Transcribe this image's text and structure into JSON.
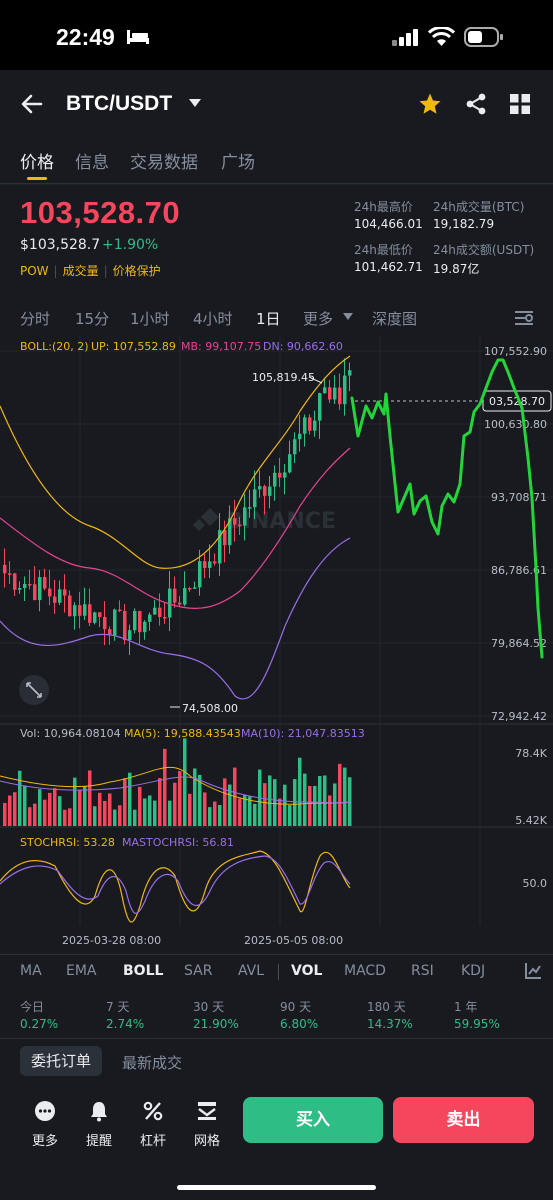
{
  "status_bar": {
    "time": "22:49"
  },
  "header": {
    "pair": "BTC/USDT"
  },
  "tabs": [
    {
      "label": "价格",
      "active": true
    },
    {
      "label": "信息",
      "active": false
    },
    {
      "label": "交易数据",
      "active": false
    },
    {
      "label": "广场",
      "active": false
    }
  ],
  "price": {
    "last": "103,528.70",
    "usd": "$103,528.7",
    "change": "+1.90%",
    "tags": [
      "POW",
      "成交量",
      "价格保护"
    ]
  },
  "stats": {
    "high_label": "24h最高价",
    "high": "104,466.01",
    "vol_btc_label": "24h成交量(BTC)",
    "vol_btc": "19,182.79",
    "low_label": "24h最低价",
    "low": "101,462.71",
    "vol_usdt_label": "24h成交额(USDT)",
    "vol_usdt": "19.87亿"
  },
  "intervals": [
    {
      "label": "分时",
      "active": false
    },
    {
      "label": "15分",
      "active": false
    },
    {
      "label": "1小时",
      "active": false
    },
    {
      "label": "4小时",
      "active": false
    },
    {
      "label": "1日",
      "active": true
    },
    {
      "label": "更多",
      "active": false
    },
    {
      "label": "深度图",
      "active": false
    }
  ],
  "chart": {
    "boll_legend": "BOLL:(20, 2)",
    "up_legend": "UP: 107,552.89",
    "mb_legend": "MB: 99,107.75",
    "dn_legend": "DN: 90,662.60",
    "y_ticks": [
      "107,552.90",
      "100,630.80",
      "93,708.71",
      "86,786.61",
      "79,864.52",
      "72,942.42"
    ],
    "current_price_tag": "03,528.70",
    "high_marker": "105,819.45",
    "low_marker": "74,508.00",
    "watermark": "BINANCE",
    "vol_legend": "Vol: 10,964.08104",
    "ma5_legend": "MA(5): 19,588.43543",
    "ma10_legend": "MA(10): 21,047.83513",
    "vol_ticks": [
      "78.4K",
      "5.42K"
    ],
    "stoch_legend": "STOCHRSI: 53.28",
    "mastoch_legend": "MASTOCHRSI: 56.81",
    "stoch_tick": "50.0",
    "x_ticks": [
      "2025-03-28 08:00",
      "2025-05-05 08:00"
    ],
    "colors": {
      "up": "#2ebd85",
      "down": "#f6465d",
      "boll_up": "#f0b90b",
      "boll_mb": "#e84393",
      "boll_dn": "#9b6ee8",
      "drawn": "#22d63a"
    }
  },
  "indicators": [
    {
      "label": "MA",
      "active": false
    },
    {
      "label": "EMA",
      "active": false
    },
    {
      "label": "BOLL",
      "active": true
    },
    {
      "label": "SAR",
      "active": false
    },
    {
      "label": "AVL",
      "active": false
    },
    {
      "label": "VOL",
      "active": true
    },
    {
      "label": "MACD",
      "active": false
    },
    {
      "label": "RSI",
      "active": false
    },
    {
      "label": "KDJ",
      "active": false
    }
  ],
  "performance": [
    {
      "label": "今日",
      "value": "0.27%"
    },
    {
      "label": "7 天",
      "value": "2.74%"
    },
    {
      "label": "30 天",
      "value": "21.90%"
    },
    {
      "label": "90 天",
      "value": "6.80%"
    },
    {
      "label": "180 天",
      "value": "14.37%"
    },
    {
      "label": "1 年",
      "value": "59.95%"
    }
  ],
  "order_tabs": {
    "open": "委托订单",
    "trades": "最新成交"
  },
  "bottom_nav": {
    "more": "更多",
    "alert": "提醒",
    "margin": "杠杆",
    "grid": "网格",
    "buy": "买入",
    "sell": "卖出"
  }
}
